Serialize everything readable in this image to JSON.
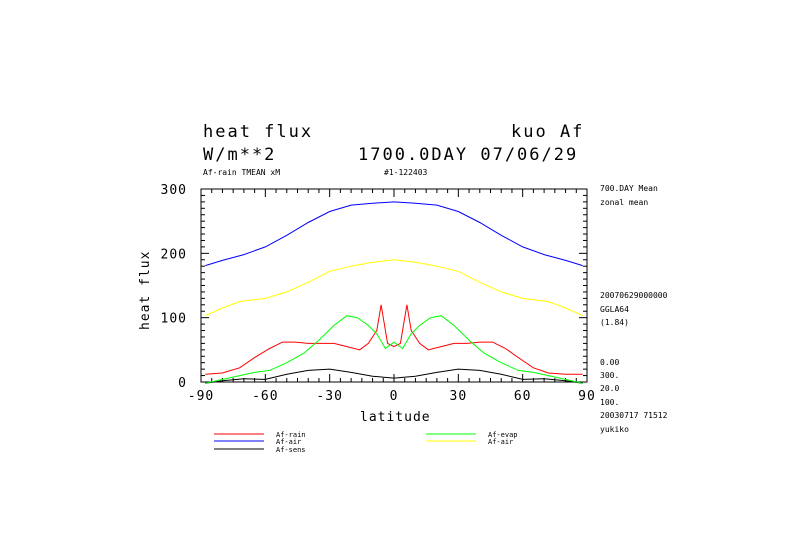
{
  "header": {
    "title_left": "heat flux",
    "title_right": "kuo Af",
    "units": "W/m**2",
    "time": "1700.0DAY 07/06/29",
    "sub_left": "Af-rain TMEAN xM",
    "sub_mid": "#1-122403"
  },
  "side_info": {
    "mean": "700.DAY Mean",
    "zonal": "zonal mean",
    "date": "20070629000000",
    "grid": "GGLA64",
    "scale": "(1.84)",
    "v1": "0.00",
    "v2": "300.",
    "v3": "20.0",
    "v4": "100.",
    "stamp": "20030717  71512",
    "user": "yukiko"
  },
  "chart_data": {
    "type": "line",
    "xlabel": "latitude",
    "ylabel": "heat flux",
    "xlim": [
      -90,
      90
    ],
    "ylim": [
      0,
      300
    ],
    "x_ticks": [
      "-90",
      "-60",
      "-30",
      "0",
      "30",
      "60",
      "90"
    ],
    "y_ticks": [
      "0",
      "100",
      "200",
      "300"
    ],
    "series": [
      {
        "name": "Af-rain",
        "color": "#ff0000",
        "x": [
          -88,
          -80,
          -72,
          -65,
          -58,
          -52,
          -46,
          -40,
          -34,
          -28,
          -22,
          -16,
          -12,
          -8,
          -6,
          -3,
          0,
          3,
          6,
          8,
          12,
          16,
          22,
          28,
          34,
          40,
          46,
          52,
          58,
          65,
          72,
          80,
          88
        ],
        "y": [
          12,
          14,
          22,
          38,
          52,
          62,
          62,
          60,
          60,
          60,
          55,
          50,
          60,
          80,
          120,
          60,
          55,
          60,
          120,
          80,
          60,
          50,
          55,
          60,
          60,
          62,
          62,
          52,
          38,
          22,
          14,
          12,
          12
        ]
      },
      {
        "name": "Af-air",
        "color": "#0000ff",
        "x": [
          -88,
          -80,
          -70,
          -60,
          -50,
          -40,
          -30,
          -20,
          -10,
          0,
          10,
          20,
          30,
          40,
          50,
          60,
          70,
          80,
          88
        ],
        "y": [
          181,
          189,
          198,
          210,
          228,
          248,
          265,
          275,
          278,
          280,
          278,
          275,
          265,
          248,
          228,
          210,
          198,
          189,
          181
        ]
      },
      {
        "name": "Af-sens",
        "color": "#000000",
        "x": [
          -88,
          -80,
          -70,
          -60,
          -50,
          -40,
          -30,
          -20,
          -10,
          0,
          10,
          20,
          30,
          40,
          50,
          60,
          70,
          80,
          88
        ],
        "y": [
          -2,
          2,
          5,
          4,
          12,
          18,
          20,
          15,
          9,
          6,
          9,
          15,
          20,
          18,
          12,
          4,
          5,
          2,
          -2
        ]
      },
      {
        "name": "Af-evap",
        "color": "#00ff00",
        "x": [
          -88,
          -80,
          -72,
          -65,
          -58,
          -50,
          -42,
          -35,
          -28,
          -22,
          -17,
          -12,
          -8,
          -4,
          0,
          4,
          8,
          12,
          17,
          22,
          28,
          35,
          42,
          50,
          58,
          65,
          72,
          80,
          88
        ],
        "y": [
          -2,
          4,
          10,
          15,
          18,
          30,
          45,
          65,
          88,
          103,
          100,
          88,
          75,
          52,
          62,
          52,
          75,
          88,
          100,
          103,
          88,
          65,
          45,
          30,
          18,
          15,
          10,
          4,
          -2
        ]
      },
      {
        "name": "Af-air",
        "color": "#ffff00",
        "x": [
          -88,
          -80,
          -72,
          -60,
          -50,
          -40,
          -30,
          -20,
          -10,
          0,
          10,
          20,
          30,
          40,
          50,
          60,
          72,
          80,
          88
        ],
        "y": [
          103,
          115,
          125,
          130,
          140,
          155,
          172,
          180,
          186,
          190,
          186,
          180,
          172,
          155,
          140,
          130,
          125,
          115,
          103
        ]
      }
    ]
  }
}
